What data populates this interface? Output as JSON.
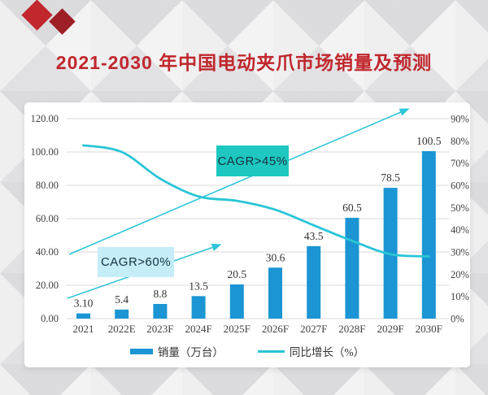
{
  "title": {
    "text": "2021-2030 年中国电动夹爪市场销量及预测",
    "color": "#c0272d"
  },
  "chart_data": {
    "type": "bar",
    "subtype": "bar+line combo",
    "categories": [
      "2021",
      "2022E",
      "2023F",
      "2024F",
      "2025F",
      "2026F",
      "2027F",
      "2028F",
      "2029F",
      "2030F"
    ],
    "series": [
      {
        "name": "销量（万台）",
        "type": "bar",
        "axis": "left",
        "color": "#1b95d3",
        "values": [
          3.1,
          5.4,
          8.8,
          13.5,
          20.5,
          30.6,
          43.5,
          60.5,
          78.5,
          100.5
        ],
        "value_labels": [
          "3.10",
          "5.4",
          "8.8",
          "13.5",
          "20.5",
          "30.6",
          "43.5",
          "60.5",
          "78.5",
          "100.5"
        ]
      },
      {
        "name": "同比增长（%）",
        "type": "line",
        "axis": "right",
        "color": "#29c5d6",
        "values": [
          78,
          75,
          63,
          55,
          53,
          49,
          42,
          35,
          29,
          28
        ]
      }
    ],
    "left_axis": {
      "range": [
        0,
        120
      ],
      "tick_step": 20,
      "tick_labels": [
        "0.00",
        "20.00",
        "40.00",
        "60.00",
        "80.00",
        "100.00",
        "120.00"
      ]
    },
    "right_axis": {
      "range": [
        0,
        90
      ],
      "tick_step": 10,
      "tick_labels": [
        "0%",
        "10%",
        "20%",
        "30%",
        "40%",
        "50%",
        "60%",
        "70%",
        "80%",
        "90%"
      ]
    },
    "grid": "horizontal lines at left-axis 20-unit steps",
    "legend_position": "bottom-center",
    "annotations": [
      {
        "label": "CAGR>60%",
        "box_fill": "#c5edf8",
        "text_color": "#14333d"
      },
      {
        "label": "CAGR>45%",
        "box_fill": "#1ec7c0",
        "text_color": "#14333d"
      }
    ]
  },
  "legend": {
    "items": [
      {
        "label": "销量（万台）"
      },
      {
        "label": "同比增长（%）"
      }
    ]
  },
  "colors": {
    "title_red": "#c0272d",
    "bar_blue": "#1b95d3",
    "line_cyan": "#29c5d6",
    "arrow_cyan": "#2fc6d8",
    "grid_gray": "#d9d9d9",
    "tick_text": "#3f3f3f",
    "decor_diamond_red": "#c1272d",
    "decor_diamond_dark_red": "#9e1f26",
    "card_bg": "#ffffff",
    "page_bg": "#e9e9eb"
  }
}
